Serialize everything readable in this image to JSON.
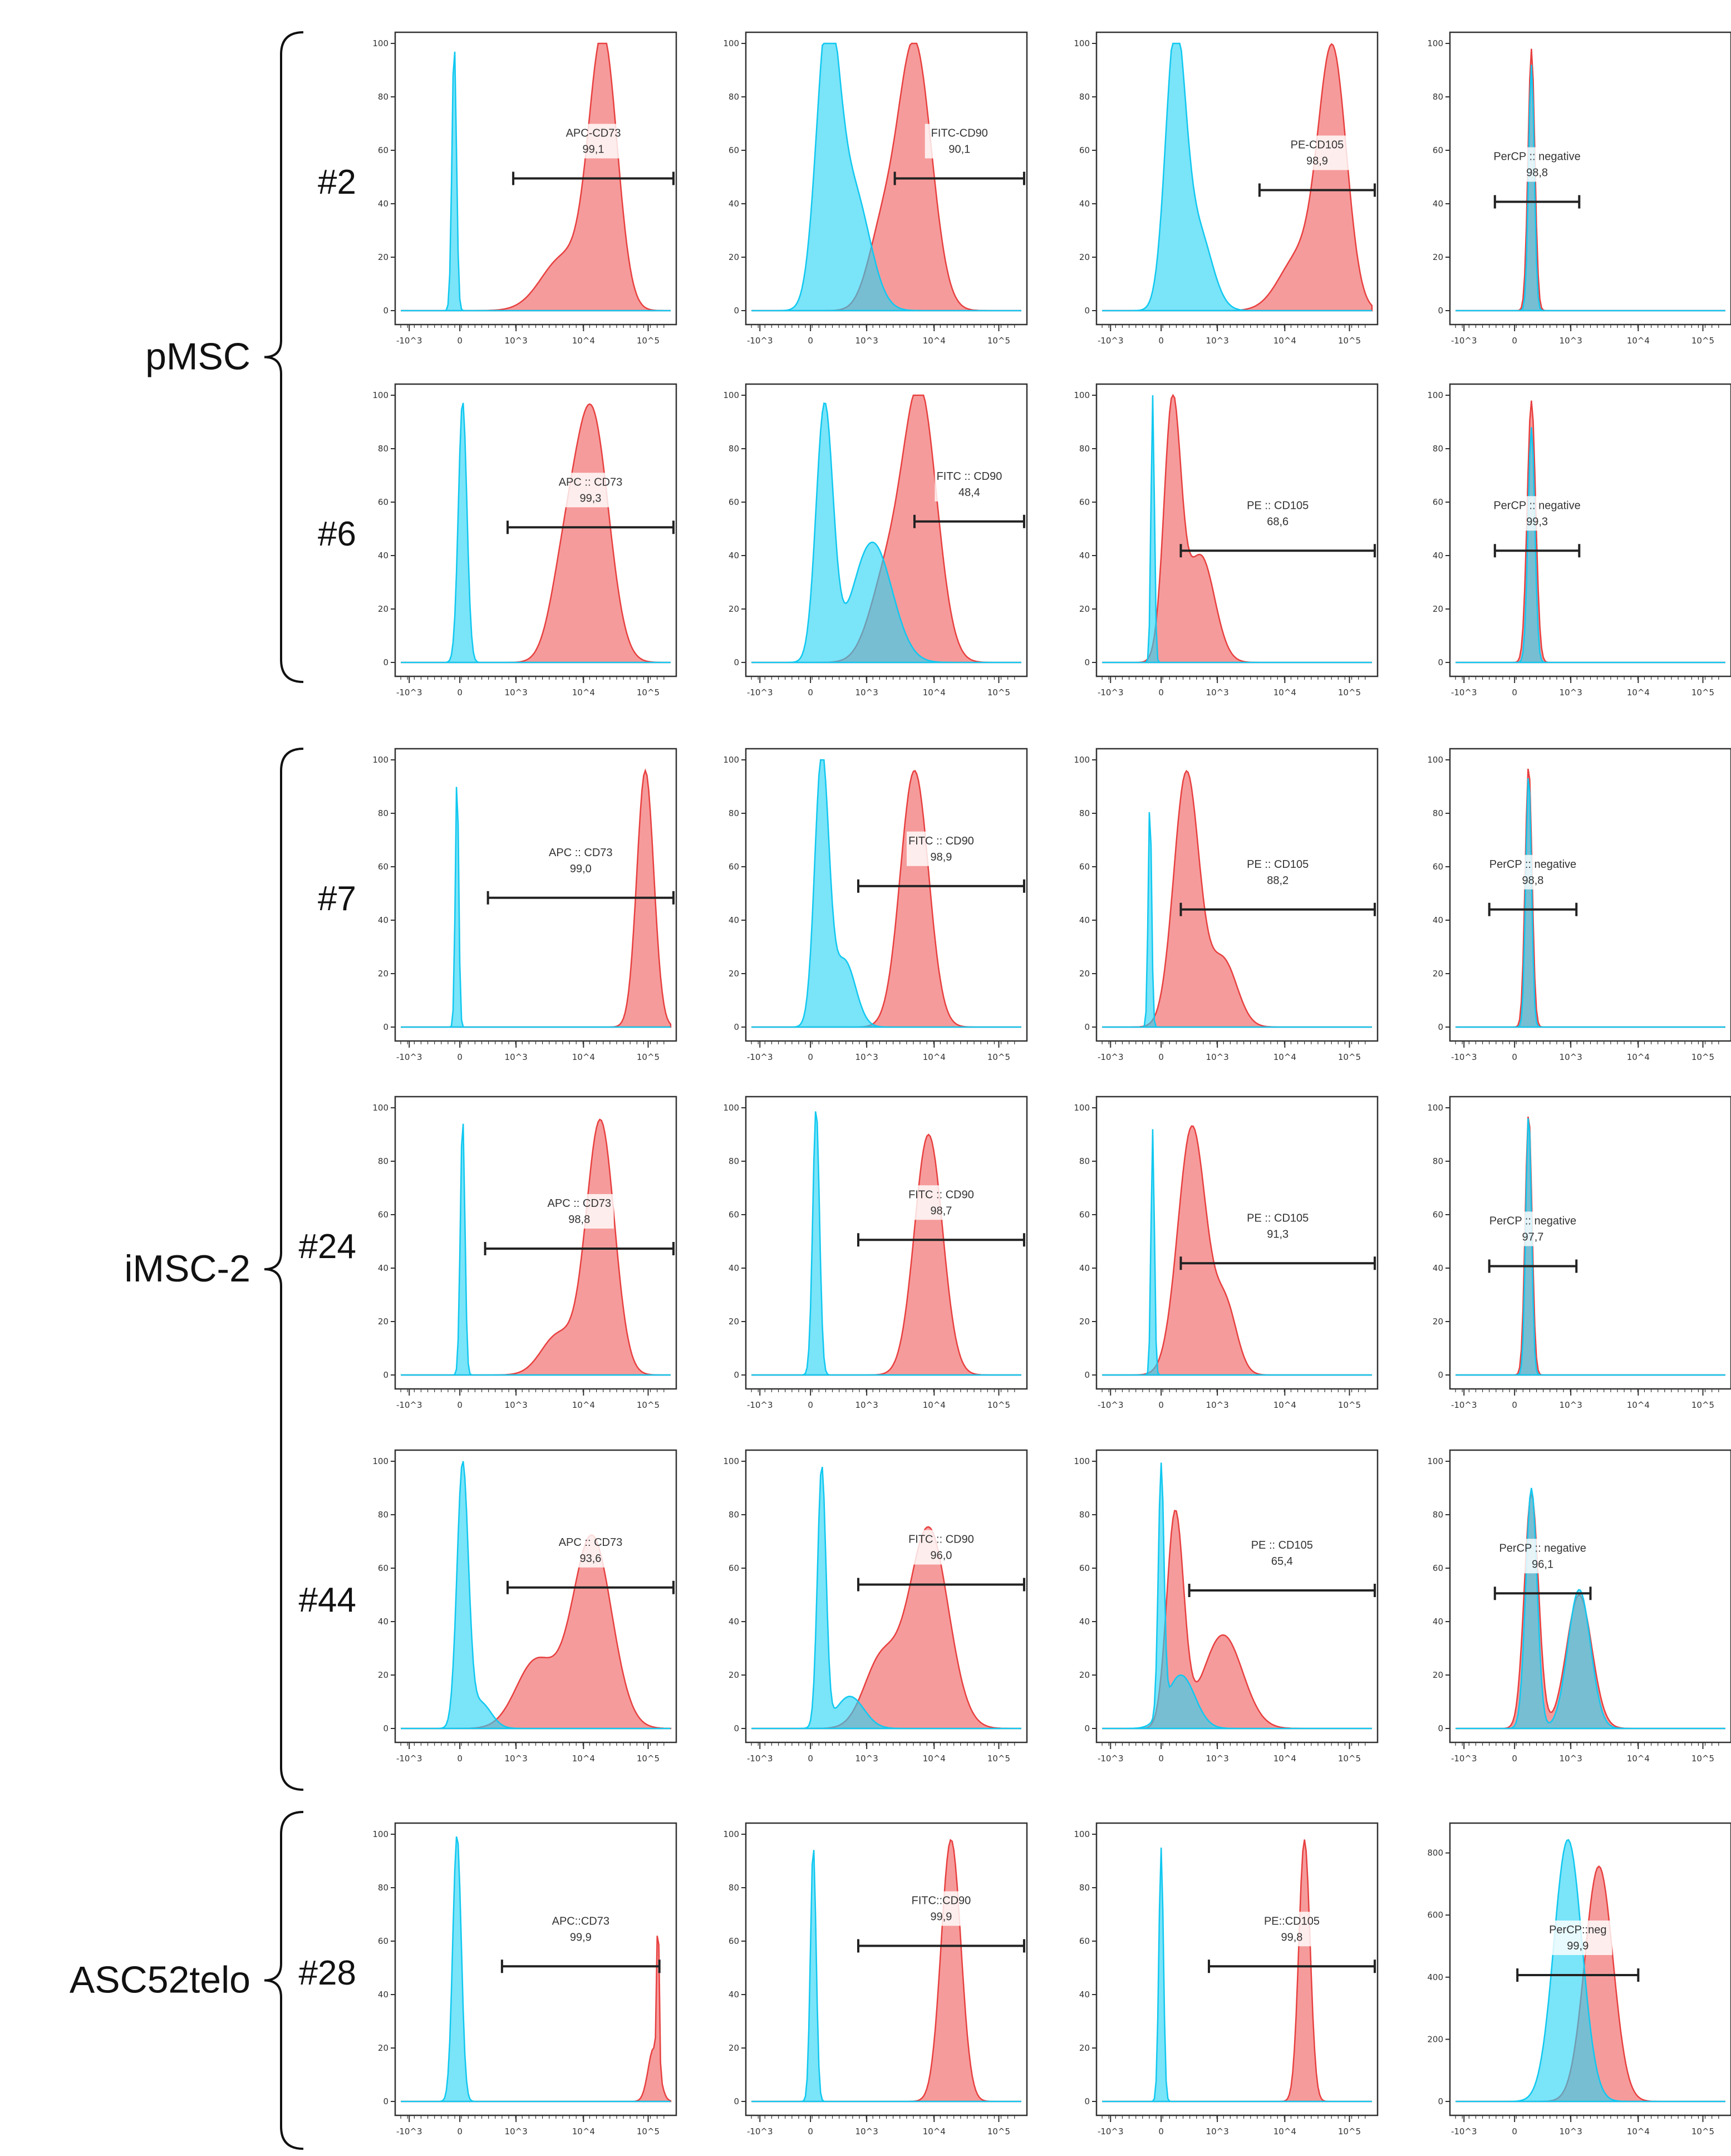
{
  "chart_data": {
    "type": "area",
    "description_axes": "x: fluorescence intensity (biexponential), y: cell count",
    "x_tick_labels": [
      "-10^3",
      "0",
      "10^3",
      "10^4",
      "10^5"
    ],
    "y_tick_labels_default": [
      "0",
      "20",
      "40",
      "60",
      "80",
      "100"
    ],
    "y_tick_labels_asc_negative": [
      "0",
      "200",
      "400",
      "600",
      "800"
    ],
    "colors": {
      "control": "#29d4f5",
      "stained": "#f47f7f",
      "overlap": "#7f9fb5"
    },
    "groups": [
      {
        "name": "pMSC",
        "rows": [
          "#2",
          "#6"
        ]
      },
      {
        "name": "iMSC-2",
        "rows": [
          "#7",
          "#24",
          "#44"
        ]
      },
      {
        "name": "ASC52telo",
        "rows": [
          "#28"
        ]
      }
    ],
    "rows": [
      {
        "label": "#2",
        "panels": [
          {
            "gate_name": "APC-CD73",
            "gate_value": "99,1"
          },
          {
            "gate_name": "FITC-CD90",
            "gate_value": "90,1"
          },
          {
            "gate_name": "PE-CD105",
            "gate_value": "98,9"
          },
          {
            "gate_name": "PerCP :: negative",
            "gate_value": "98,8"
          }
        ]
      },
      {
        "label": "#6",
        "panels": [
          {
            "gate_name": "APC :: CD73",
            "gate_value": "99,3"
          },
          {
            "gate_name": "FITC :: CD90",
            "gate_value": "48,4"
          },
          {
            "gate_name": "PE :: CD105",
            "gate_value": "68,6"
          },
          {
            "gate_name": "PerCP :: negative",
            "gate_value": "99,3"
          }
        ]
      },
      {
        "label": "#7",
        "panels": [
          {
            "gate_name": "APC :: CD73",
            "gate_value": "99,0"
          },
          {
            "gate_name": "FITC :: CD90",
            "gate_value": "98,9"
          },
          {
            "gate_name": "PE :: CD105",
            "gate_value": "88,2"
          },
          {
            "gate_name": "PerCP :: negative",
            "gate_value": "98,8"
          }
        ]
      },
      {
        "label": "#24",
        "panels": [
          {
            "gate_name": "APC :: CD73",
            "gate_value": "98,8"
          },
          {
            "gate_name": "FITC :: CD90",
            "gate_value": "98,7"
          },
          {
            "gate_name": "PE :: CD105",
            "gate_value": "91,3"
          },
          {
            "gate_name": "PerCP :: negative",
            "gate_value": "97,7"
          }
        ]
      },
      {
        "label": "#44",
        "panels": [
          {
            "gate_name": "APC :: CD73",
            "gate_value": "93,6"
          },
          {
            "gate_name": "FITC :: CD90",
            "gate_value": "96,0"
          },
          {
            "gate_name": "PE :: CD105",
            "gate_value": "65,4"
          },
          {
            "gate_name": "PerCP :: negative",
            "gate_value": "96,1"
          }
        ]
      },
      {
        "label": "#28",
        "panels": [
          {
            "gate_name": "APC::CD73",
            "gate_value": "99,9"
          },
          {
            "gate_name": "FITC::CD90",
            "gate_value": "99,9"
          },
          {
            "gate_name": "PE::CD105",
            "gate_value": "99,8"
          },
          {
            "gate_name": "PerCP::neg",
            "gate_value": "99,9"
          }
        ]
      }
    ]
  }
}
